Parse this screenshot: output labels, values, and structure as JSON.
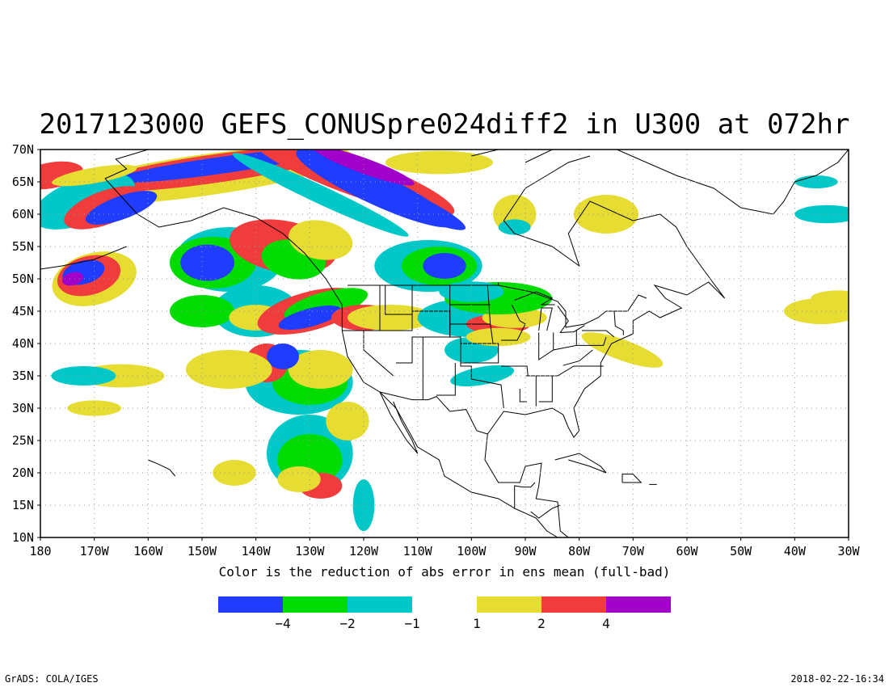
{
  "title": "2017123000 GEFS_CONUSpre024diff2 in U300 at 072hr",
  "subtitle": "Color is the reduction of abs error in ens mean (full-bad)",
  "map": {
    "lon_range": [
      -180,
      -30
    ],
    "lat_range": [
      10,
      70
    ],
    "lat_ticks": [
      "10N",
      "15N",
      "20N",
      "25N",
      "30N",
      "35N",
      "40N",
      "45N",
      "50N",
      "55N",
      "60N",
      "65N",
      "70N"
    ],
    "lon_ticks": [
      "180",
      "170W",
      "160W",
      "150W",
      "140W",
      "130W",
      "120W",
      "110W",
      "100W",
      "90W",
      "80W",
      "70W",
      "60W",
      "50W",
      "40W",
      "30W"
    ],
    "grid": "dotted",
    "projection": "lat-lon"
  },
  "legend": {
    "colors": [
      "#1f3cff",
      "#00dc00",
      "#00c8c8",
      "#e6dc32",
      "#f03c3c",
      "#a000c8"
    ],
    "labels": [
      "−4",
      "−2",
      "−1",
      "1",
      "2",
      "4"
    ]
  },
  "footer": {
    "left": "GrADS: COLA/IGES",
    "right": "2018-02-22-16:34"
  }
}
